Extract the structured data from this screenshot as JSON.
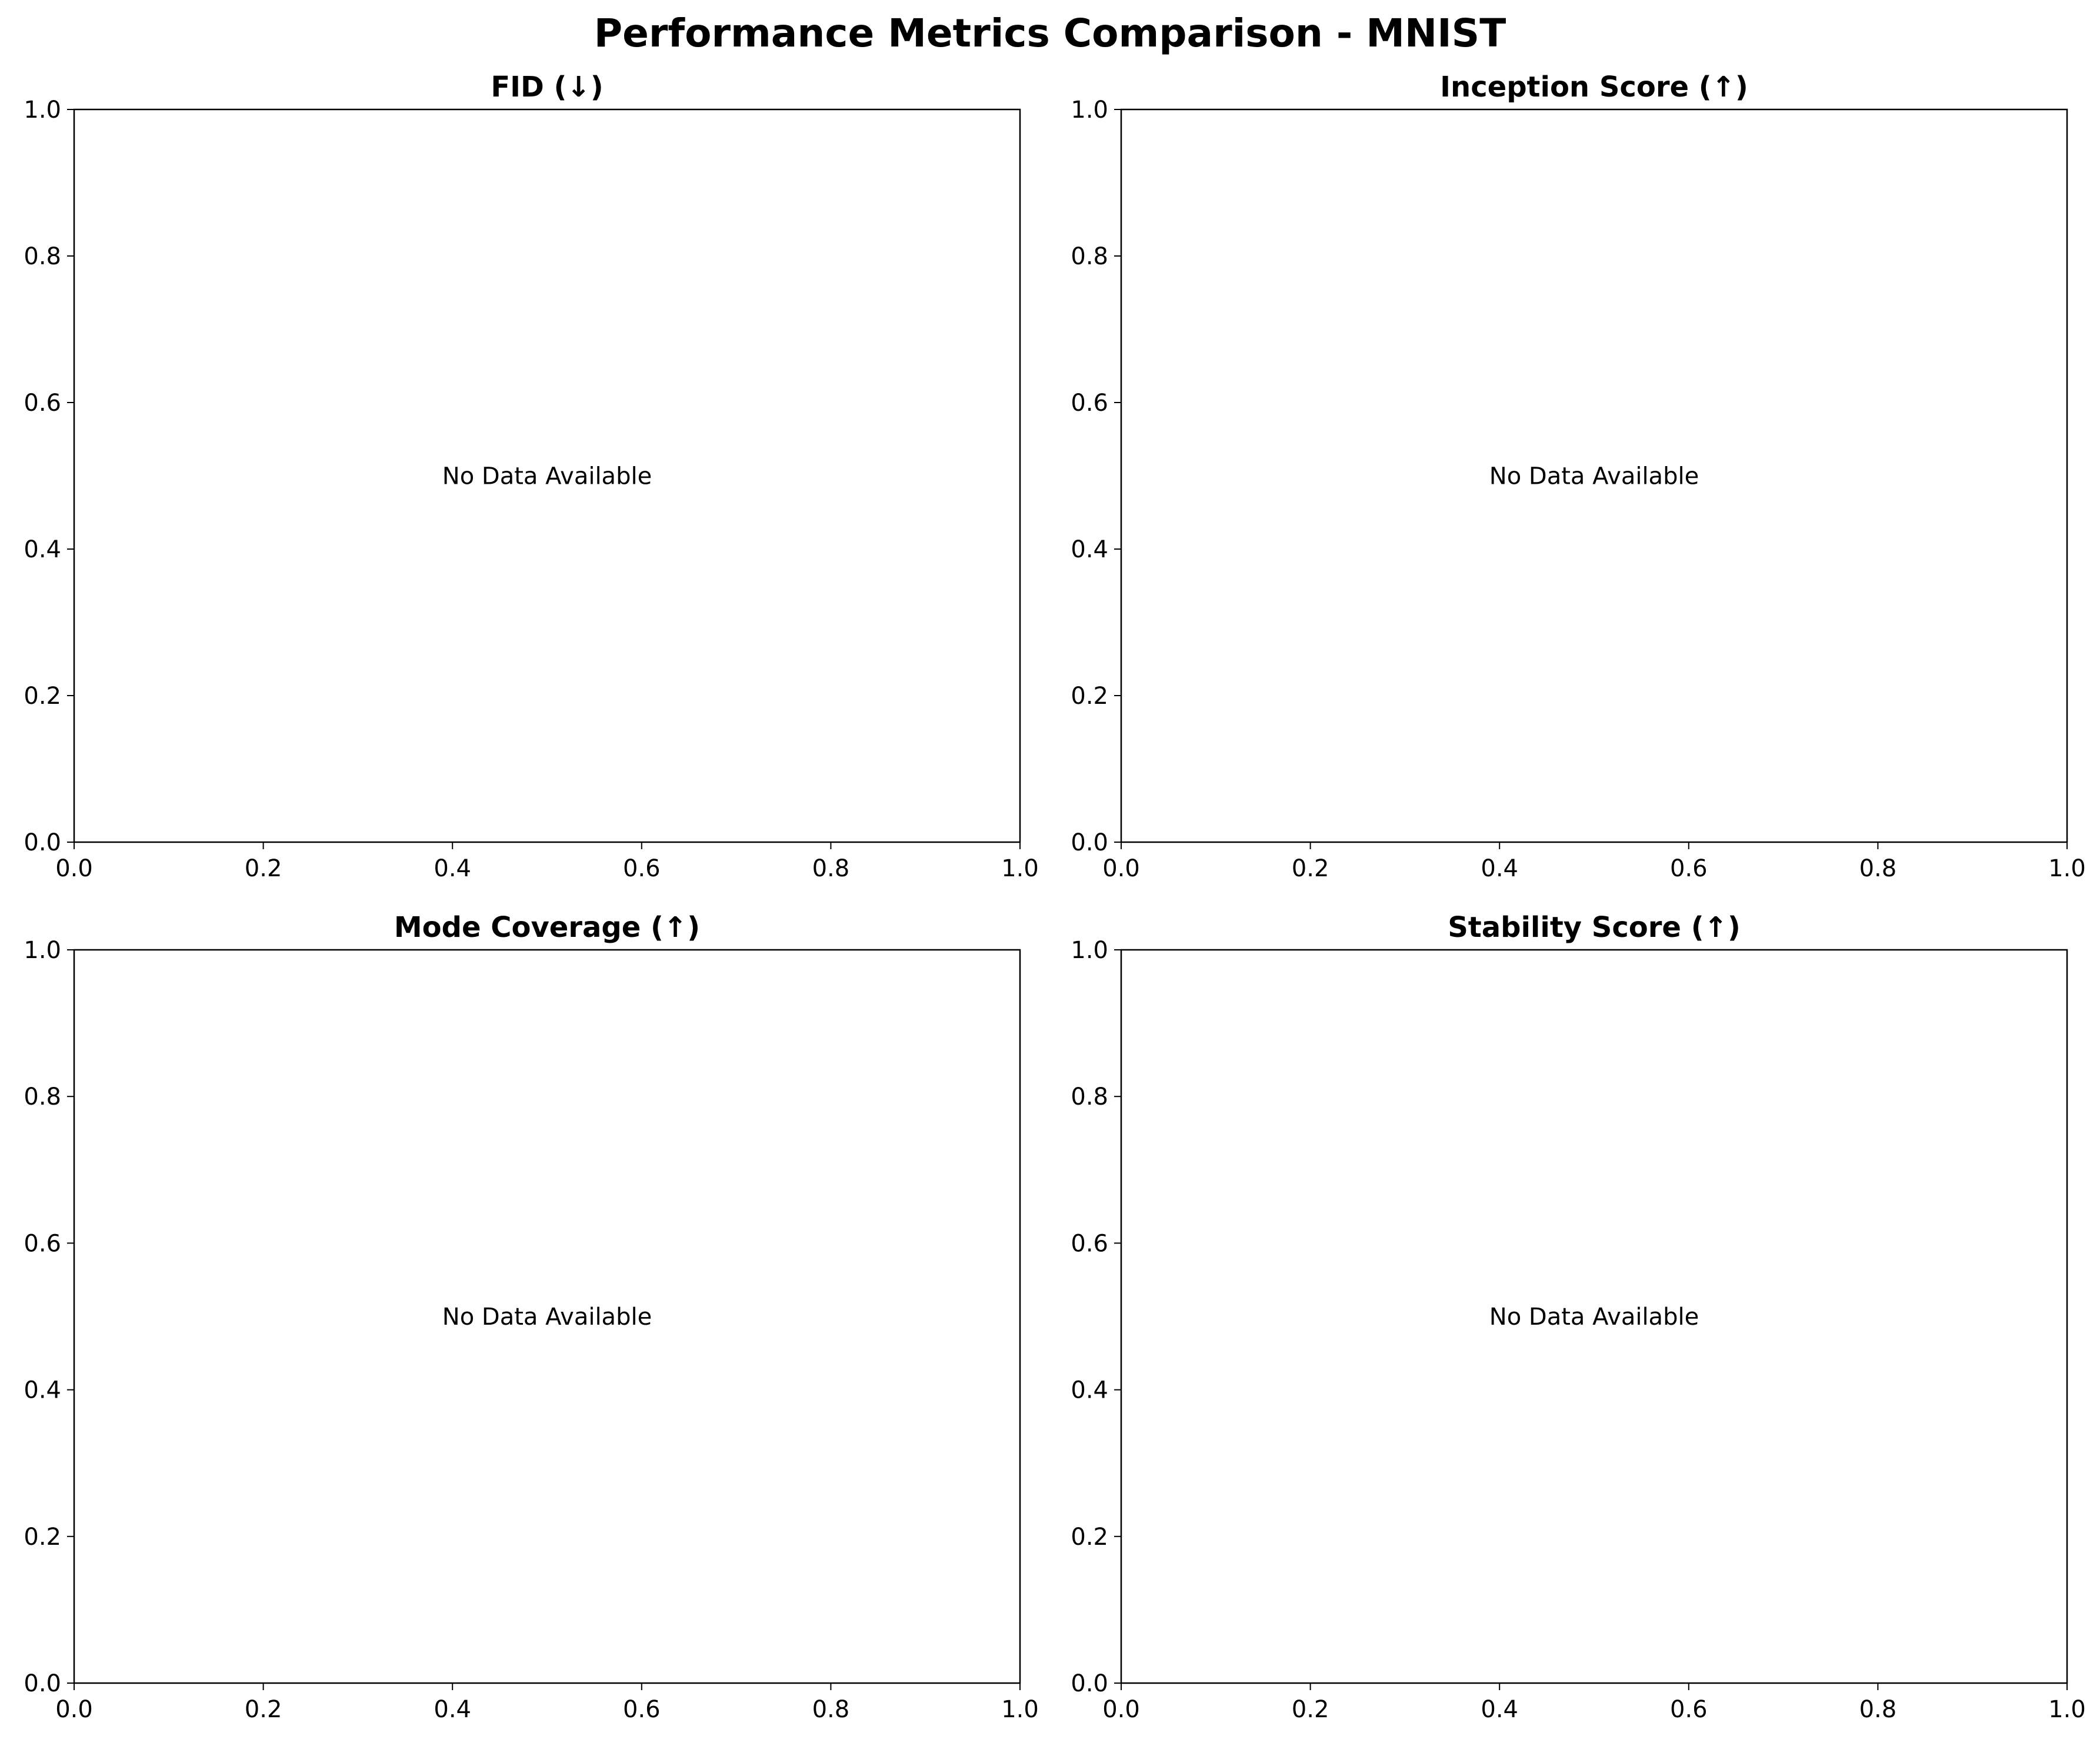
{
  "figure": {
    "title": "Performance Metrics Comparison - MNIST"
  },
  "chart_data": [
    {
      "type": "line",
      "title": "FID (↓)",
      "xlabel": "",
      "ylabel": "",
      "xlim": [
        0,
        1
      ],
      "ylim": [
        0,
        1
      ],
      "x_ticks": [
        "0.0",
        "0.2",
        "0.4",
        "0.6",
        "0.8",
        "1.0"
      ],
      "y_ticks": [
        "0.0",
        "0.2",
        "0.4",
        "0.6",
        "0.8",
        "1.0"
      ],
      "series": [],
      "annotation": "No Data Available",
      "grid": false
    },
    {
      "type": "line",
      "title": "Inception Score (↑)",
      "xlabel": "",
      "ylabel": "",
      "xlim": [
        0,
        1
      ],
      "ylim": [
        0,
        1
      ],
      "x_ticks": [
        "0.0",
        "0.2",
        "0.4",
        "0.6",
        "0.8",
        "1.0"
      ],
      "y_ticks": [
        "0.0",
        "0.2",
        "0.4",
        "0.6",
        "0.8",
        "1.0"
      ],
      "series": [],
      "annotation": "No Data Available",
      "grid": false
    },
    {
      "type": "line",
      "title": "Mode Coverage (↑)",
      "xlabel": "",
      "ylabel": "",
      "xlim": [
        0,
        1
      ],
      "ylim": [
        0,
        1
      ],
      "x_ticks": [
        "0.0",
        "0.2",
        "0.4",
        "0.6",
        "0.8",
        "1.0"
      ],
      "y_ticks": [
        "0.0",
        "0.2",
        "0.4",
        "0.6",
        "0.8",
        "1.0"
      ],
      "series": [],
      "annotation": "No Data Available",
      "grid": false
    },
    {
      "type": "line",
      "title": "Stability Score (↑)",
      "xlabel": "",
      "ylabel": "",
      "xlim": [
        0,
        1
      ],
      "ylim": [
        0,
        1
      ],
      "x_ticks": [
        "0.0",
        "0.2",
        "0.4",
        "0.6",
        "0.8",
        "1.0"
      ],
      "y_ticks": [
        "0.0",
        "0.2",
        "0.4",
        "0.6",
        "0.8",
        "1.0"
      ],
      "series": [],
      "annotation": "No Data Available",
      "grid": false
    }
  ]
}
